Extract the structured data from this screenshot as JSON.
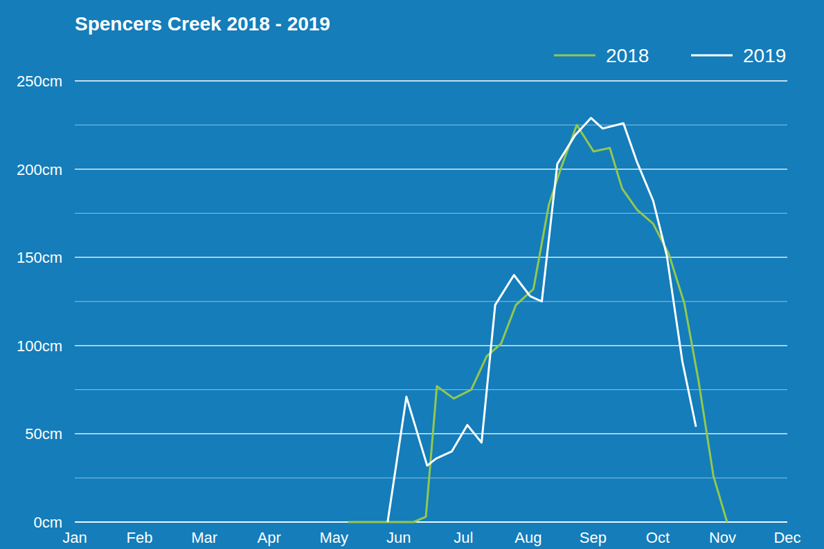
{
  "chart_data": {
    "type": "line",
    "title": "Spencers Creek 2018 - 2019",
    "xlim": [
      0,
      11
    ],
    "xticks": [
      {
        "value": 0,
        "label": "Jan"
      },
      {
        "value": 1,
        "label": "Feb"
      },
      {
        "value": 2,
        "label": "Mar"
      },
      {
        "value": 3,
        "label": "Apr"
      },
      {
        "value": 4,
        "label": "May"
      },
      {
        "value": 5,
        "label": "Jun"
      },
      {
        "value": 6,
        "label": "Jul"
      },
      {
        "value": 7,
        "label": "Aug"
      },
      {
        "value": 8,
        "label": "Sep"
      },
      {
        "value": 9,
        "label": "Oct"
      },
      {
        "value": 10,
        "label": "Nov"
      },
      {
        "value": 11,
        "label": "Dec"
      }
    ],
    "ylim": [
      0,
      250
    ],
    "yticks": [
      {
        "value": 0,
        "label": "0cm"
      },
      {
        "value": 50,
        "label": "50cm"
      },
      {
        "value": 100,
        "label": "100cm"
      },
      {
        "value": 150,
        "label": "150cm"
      },
      {
        "value": 200,
        "label": "200cm"
      },
      {
        "value": 250,
        "label": "250cm"
      }
    ],
    "grid": true,
    "legend": "top-right",
    "series": [
      {
        "name": "2018",
        "color": "#92c84e",
        "x": [
          4.22,
          5.23,
          5.42,
          5.59,
          5.85,
          6.12,
          6.36,
          6.58,
          6.81,
          7.08,
          7.32,
          7.5,
          7.75,
          8.01,
          8.26,
          8.45,
          8.68,
          8.93,
          9.17,
          9.41,
          9.63,
          9.86,
          10.07
        ],
        "values": [
          0,
          0,
          3,
          77,
          70,
          75,
          94,
          101,
          123,
          132,
          180,
          200,
          225,
          210,
          212,
          189,
          177,
          169,
          152,
          124,
          80,
          26,
          0
        ]
      },
      {
        "name": "2019",
        "color": "#ffffff",
        "x": [
          4.83,
          5.12,
          5.44,
          5.58,
          5.82,
          6.06,
          6.28,
          6.49,
          6.78,
          7.03,
          7.21,
          7.45,
          7.72,
          7.97,
          8.15,
          8.47,
          8.68,
          8.93,
          9.14,
          9.38,
          9.59
        ],
        "values": [
          0,
          71,
          32,
          36,
          40,
          55,
          45,
          123,
          140,
          128,
          125,
          203,
          219,
          229,
          223,
          226,
          204,
          182,
          151,
          91,
          54
        ]
      }
    ]
  }
}
